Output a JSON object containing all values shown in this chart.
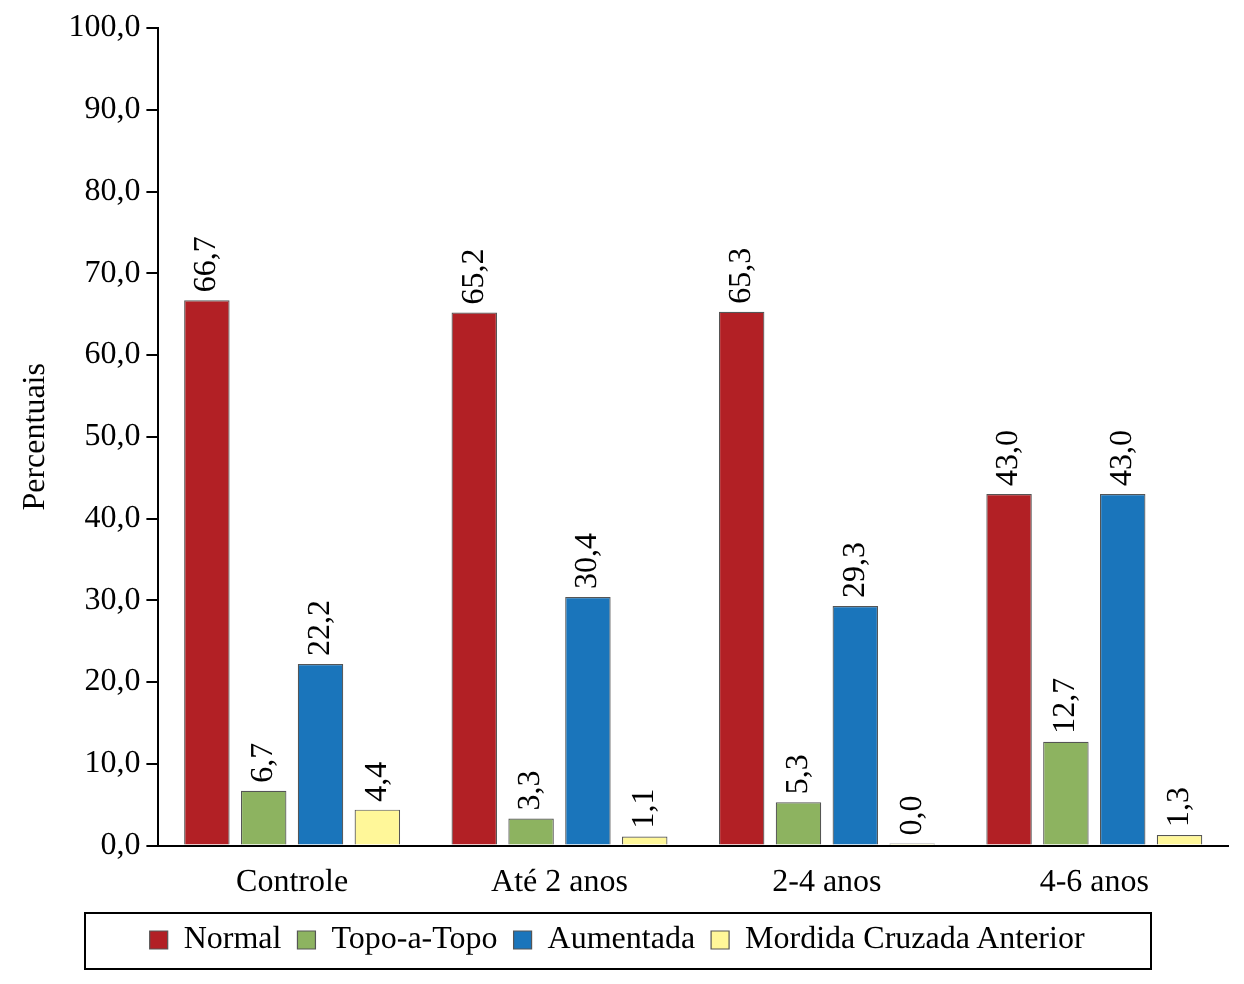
{
  "chart_data": {
    "type": "bar",
    "ylabel": "Percentuais",
    "categories": [
      "Controle",
      "Até 2 anos",
      "2-4 anos",
      "4-6 anos"
    ],
    "series": [
      {
        "name": "Normal",
        "color": "#b22025",
        "values": [
          66.7,
          65.2,
          65.3,
          43.0
        ],
        "value_labels": [
          "66,7",
          "65,2",
          "65,3",
          "43,0"
        ]
      },
      {
        "name": "Topo-a-Topo",
        "color": "#8db360",
        "values": [
          6.7,
          3.3,
          5.3,
          12.7
        ],
        "value_labels": [
          "6,7",
          "3,3",
          "5,3",
          "12,7"
        ]
      },
      {
        "name": "Aumentada",
        "color": "#1a75bb",
        "values": [
          22.2,
          30.4,
          29.3,
          43.0
        ],
        "value_labels": [
          "22,2",
          "30,4",
          "29,3",
          "43,0"
        ]
      },
      {
        "name": "Mordida Cruzada Anterior",
        "color": "#fff799",
        "values": [
          4.4,
          1.1,
          0.0,
          1.3
        ],
        "value_labels": [
          "4,4",
          "1,1",
          "0,0",
          "1,3"
        ]
      }
    ],
    "ylim": [
      0,
      100
    ],
    "yticks": [
      {
        "value": 0,
        "label": "0,0"
      },
      {
        "value": 10,
        "label": "10,0"
      },
      {
        "value": 20,
        "label": "20,0"
      },
      {
        "value": 30,
        "label": "30,0"
      },
      {
        "value": 40,
        "label": "40,0"
      },
      {
        "value": 50,
        "label": "50,0"
      },
      {
        "value": 60,
        "label": "60,0"
      },
      {
        "value": 70,
        "label": "70,0"
      },
      {
        "value": 80,
        "label": "80,0"
      },
      {
        "value": 90,
        "label": "90,0"
      },
      {
        "value": 100,
        "label": "100,0"
      }
    ],
    "grid": false,
    "legend": "bottom"
  }
}
